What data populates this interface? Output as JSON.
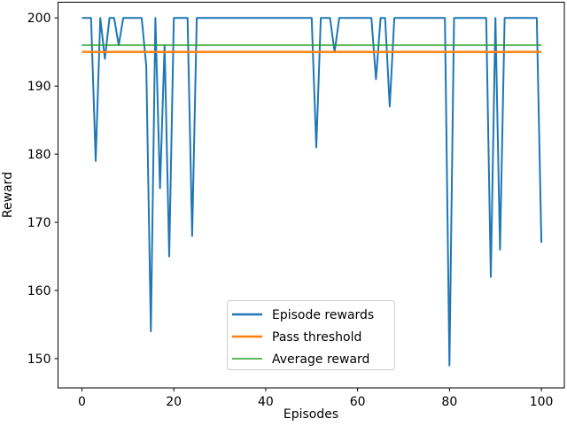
{
  "chart_data": {
    "type": "line",
    "title": "",
    "xlabel": "Episodes",
    "ylabel": "Reward",
    "xlim": [
      -5.2,
      105
    ],
    "ylim": [
      145.7,
      202.3
    ],
    "xticks": [
      0,
      20,
      40,
      60,
      80,
      100
    ],
    "yticks": [
      150,
      160,
      170,
      180,
      190,
      200
    ],
    "grid": false,
    "legend_position": "lower-center",
    "series": [
      {
        "name": "Episode rewards",
        "color": "#1f77b4",
        "x_start": 0,
        "values": [
          200,
          200,
          200,
          179,
          200,
          194,
          200,
          200,
          196,
          200,
          200,
          200,
          200,
          200,
          193,
          154,
          200,
          175,
          196,
          165,
          200,
          200,
          200,
          200,
          168,
          200,
          200,
          200,
          200,
          200,
          200,
          200,
          200,
          200,
          200,
          200,
          200,
          200,
          200,
          200,
          200,
          200,
          200,
          200,
          200,
          200,
          200,
          200,
          200,
          200,
          200,
          181,
          200,
          200,
          200,
          195,
          200,
          200,
          200,
          200,
          200,
          200,
          200,
          200,
          191,
          200,
          200,
          187,
          200,
          200,
          200,
          200,
          200,
          200,
          200,
          200,
          200,
          200,
          200,
          200,
          149,
          200,
          200,
          200,
          200,
          200,
          200,
          200,
          200,
          162,
          200,
          166,
          200,
          200,
          200,
          200,
          200,
          200,
          200,
          200,
          167
        ]
      },
      {
        "name": "Pass threshold",
        "color": "#ff7f0e",
        "constant": 195
      },
      {
        "name": "Average reward",
        "color": "#2ca02c",
        "constant": 196
      }
    ]
  }
}
